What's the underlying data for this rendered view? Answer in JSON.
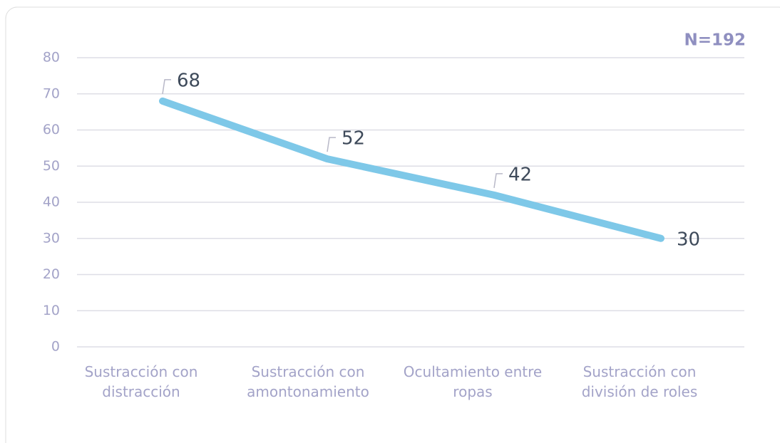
{
  "chart_data": {
    "type": "line",
    "annotation": "N=192",
    "categories": [
      "Sustracción con distracción",
      "Sustracción con amontonamiento",
      "Ocultamiento entre ropas",
      "Sustracción con división de roles"
    ],
    "values": [
      68,
      52,
      42,
      30
    ],
    "color": "#7ec8e8",
    "ylim": [
      0,
      80
    ],
    "yticks": [
      0,
      10,
      20,
      30,
      40,
      50,
      60,
      70,
      80
    ],
    "grid": true
  }
}
